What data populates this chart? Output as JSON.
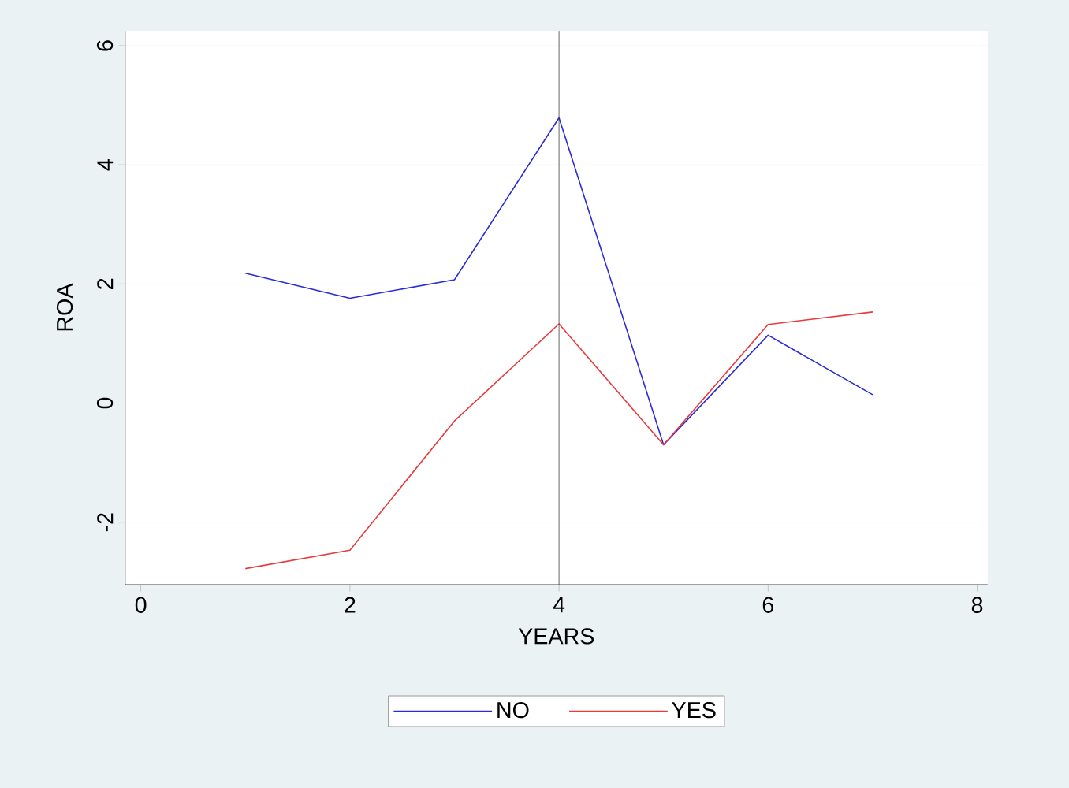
{
  "chart_data": {
    "type": "line",
    "xlabel": "YEARS",
    "ylabel": "ROA",
    "x": [
      1,
      2,
      3,
      4,
      5,
      6,
      7
    ],
    "series": [
      {
        "name": "NO",
        "color": "#2a2ad8",
        "values": [
          2.18,
          1.76,
          2.07,
          4.79,
          -0.7,
          1.14,
          0.14
        ]
      },
      {
        "name": "YES",
        "color": "#e83a3a",
        "values": [
          -2.78,
          -2.47,
          -0.3,
          1.33,
          -0.7,
          1.32,
          1.53
        ]
      }
    ],
    "xlim": [
      -0.15,
      8.1
    ],
    "ylim": [
      -3.05,
      6.25
    ],
    "xticks": [
      0,
      2,
      4,
      6,
      8
    ],
    "yticks": [
      -2,
      0,
      2,
      4,
      6
    ],
    "ref_lines": [
      {
        "axis": "x",
        "value": 4,
        "color": "#404040"
      }
    ],
    "grid": "y",
    "legend": "bottom",
    "marker": "none",
    "line_style": "solid"
  }
}
